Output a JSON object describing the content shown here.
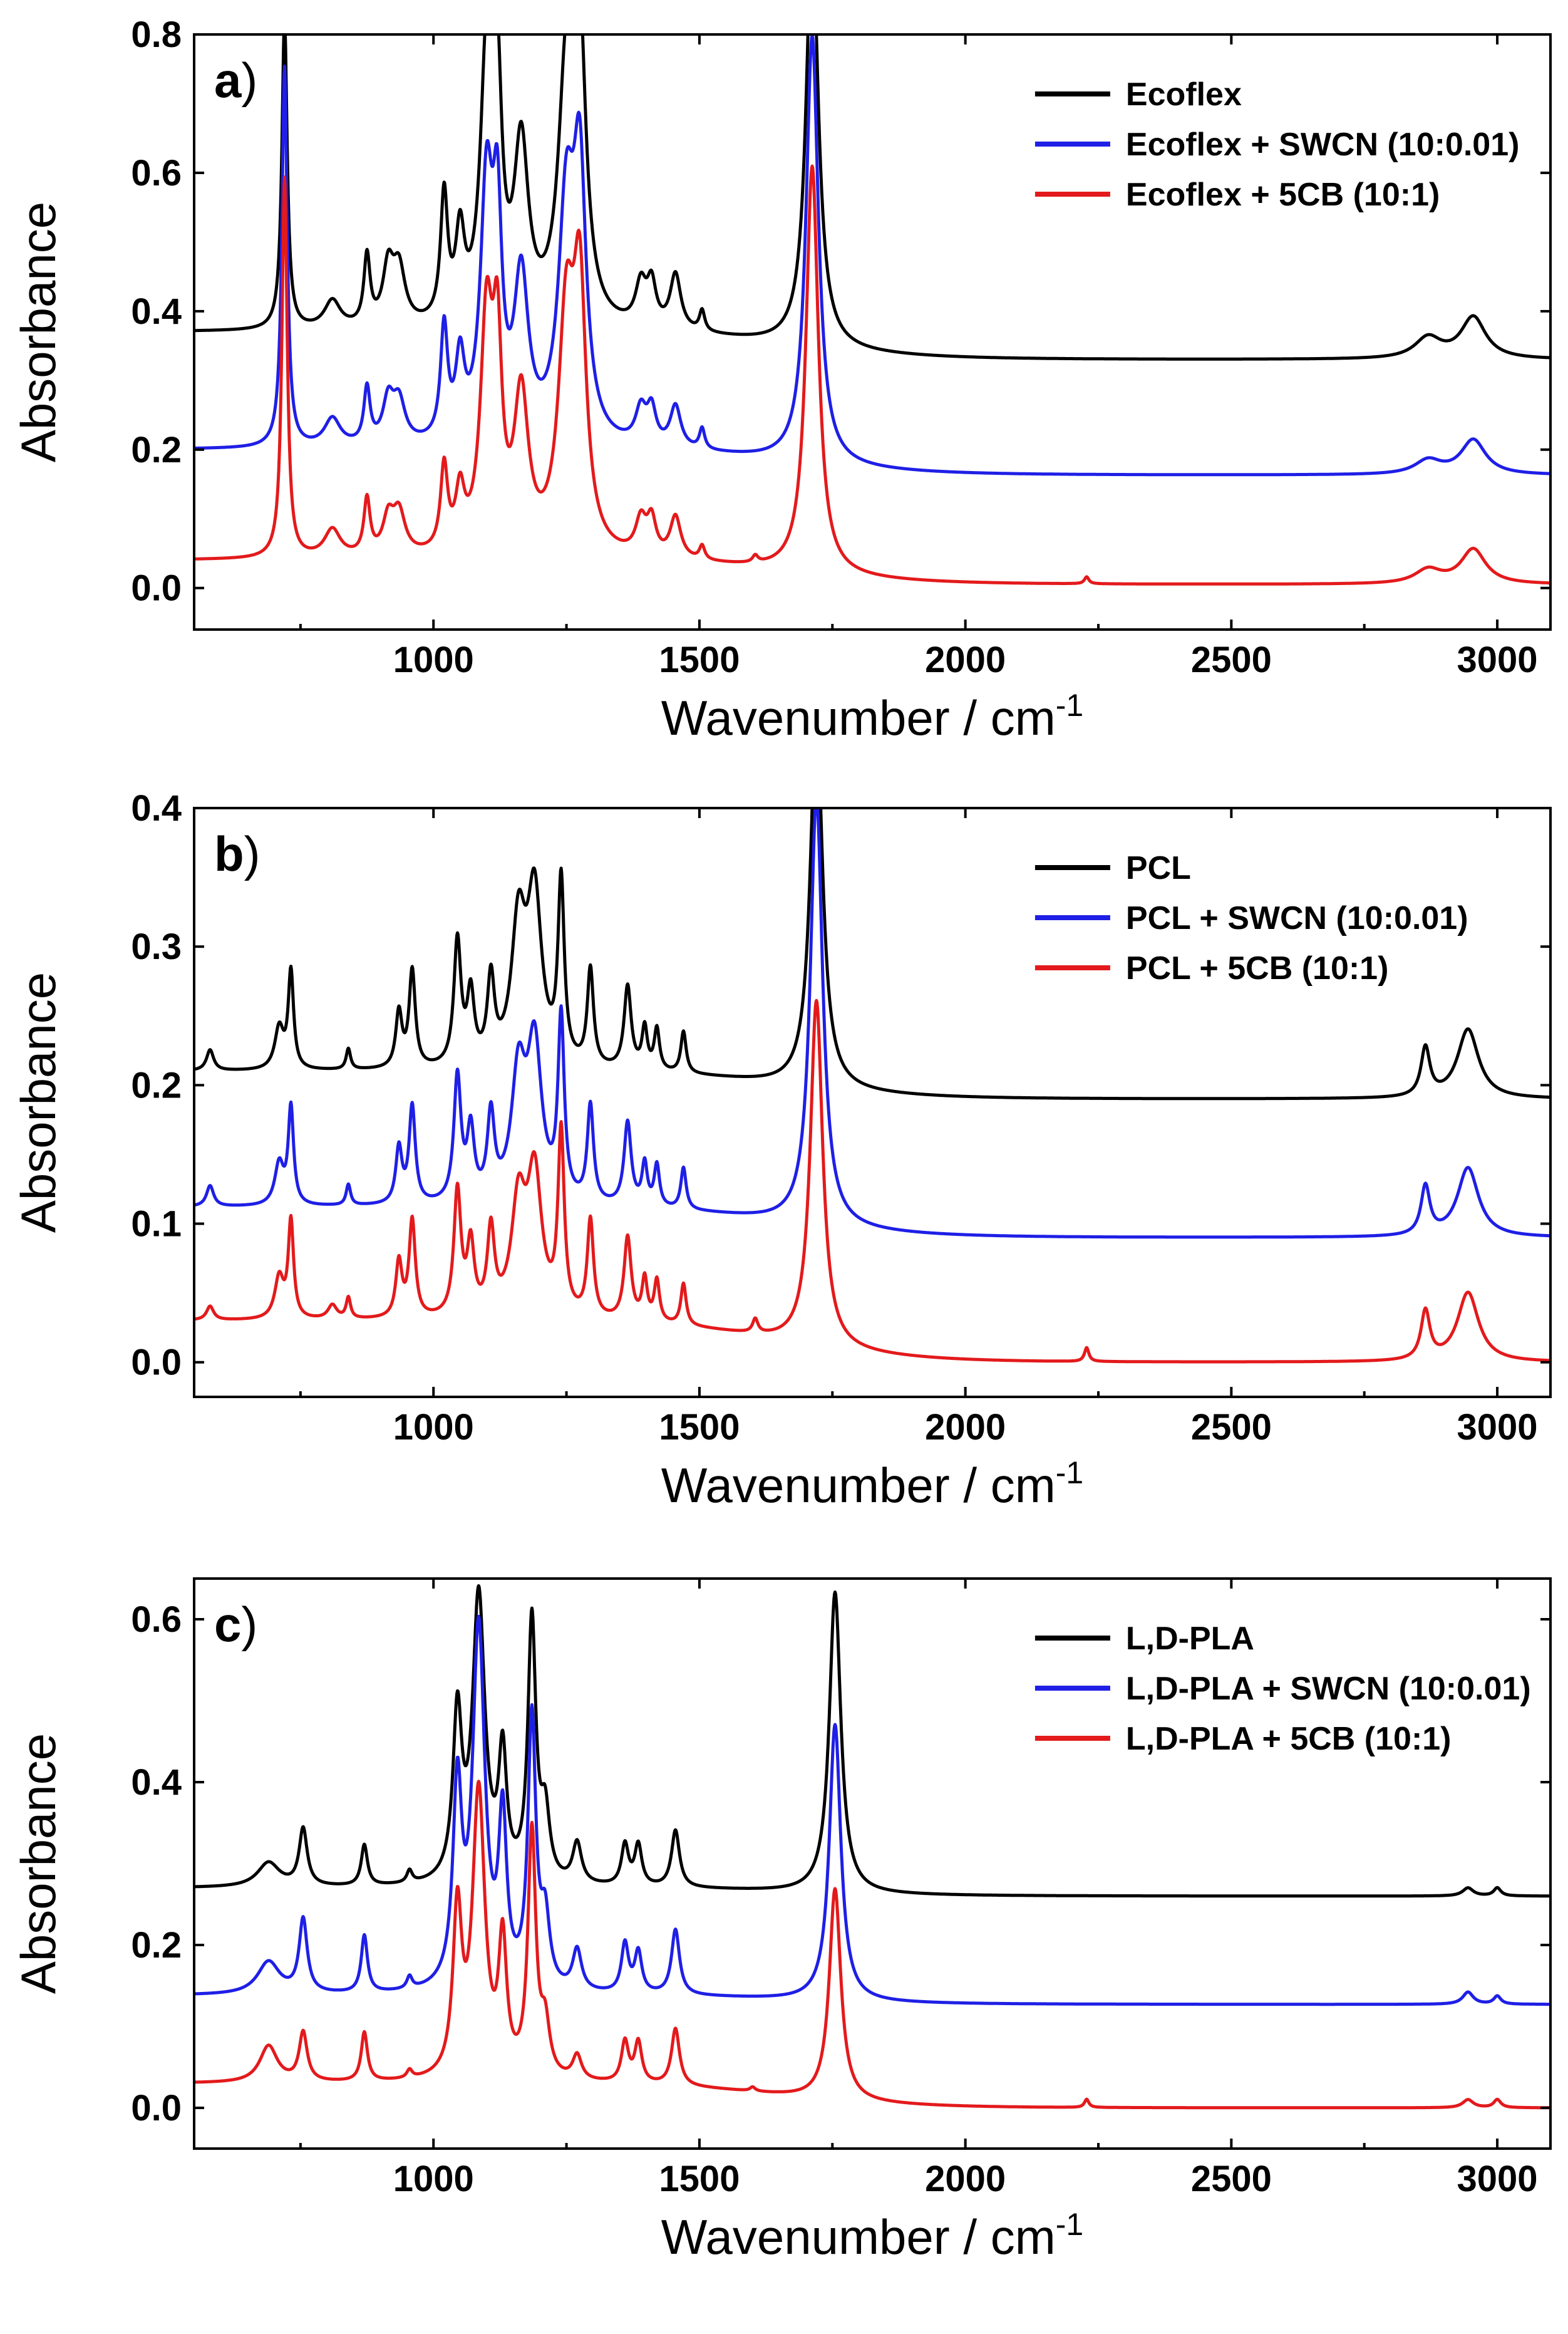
{
  "colors": {
    "black": "#000000",
    "blue": "#1f1fe6",
    "red": "#e31a1c"
  },
  "chart_data": [
    {
      "type": "line",
      "panel_label": "a",
      "xlabel": "Wavenumber / cm",
      "xlabel_sup": "-1",
      "ylabel": "Absorbance",
      "xlim": [
        550,
        3100
      ],
      "ylim": [
        -0.06,
        0.8
      ],
      "xticks": [
        1000,
        1500,
        2000,
        2500,
        3000
      ],
      "xtick_labels": [
        "1000",
        "1500",
        "2000",
        "2500",
        "3000"
      ],
      "yticks": [
        0.0,
        0.2,
        0.4,
        0.6,
        0.8
      ],
      "ytick_labels": [
        "0.0",
        "0.2",
        "0.4",
        "0.6",
        "0.8"
      ],
      "legend_position": "top-right",
      "series": [
        {
          "name": "Ecoflex",
          "color": "black",
          "baseline": 0.37,
          "high_baseline": 0.33,
          "peaks": [
            [
              720,
              0.45,
              6
            ],
            [
              810,
              0.04,
              18
            ],
            [
              875,
              0.1,
              7
            ],
            [
              915,
              0.08,
              12
            ],
            [
              935,
              0.08,
              14
            ],
            [
              1020,
              0.18,
              8
            ],
            [
              1050,
              0.12,
              10
            ],
            [
              1100,
              0.38,
              14
            ],
            [
              1120,
              0.3,
              10
            ],
            [
              1165,
              0.25,
              16
            ],
            [
              1250,
              0.35,
              18
            ],
            [
              1275,
              0.38,
              14
            ],
            [
              1390,
              0.06,
              12
            ],
            [
              1410,
              0.06,
              10
            ],
            [
              1455,
              0.08,
              12
            ],
            [
              1505,
              0.03,
              6
            ],
            [
              1712,
              0.6,
              14
            ],
            [
              2870,
              0.03,
              30
            ],
            [
              2955,
              0.06,
              28
            ]
          ]
        },
        {
          "name": "Ecoflex + SWCN (10:0.01)",
          "color": "blue",
          "baseline": 0.2,
          "high_baseline": 0.163,
          "peaks": [
            [
              720,
              0.55,
              6
            ],
            [
              810,
              0.04,
              18
            ],
            [
              875,
              0.08,
              7
            ],
            [
              915,
              0.06,
              12
            ],
            [
              935,
              0.06,
              14
            ],
            [
              1020,
              0.16,
              8
            ],
            [
              1050,
              0.11,
              10
            ],
            [
              1100,
              0.36,
              14
            ],
            [
              1120,
              0.28,
              10
            ],
            [
              1165,
              0.23,
              16
            ],
            [
              1250,
              0.33,
              18
            ],
            [
              1275,
              0.36,
              14
            ],
            [
              1390,
              0.05,
              12
            ],
            [
              1410,
              0.05,
              10
            ],
            [
              1455,
              0.06,
              12
            ],
            [
              1505,
              0.03,
              6
            ],
            [
              1712,
              0.62,
              14
            ],
            [
              2870,
              0.02,
              30
            ],
            [
              2955,
              0.05,
              28
            ]
          ]
        },
        {
          "name": "Ecoflex + 5CB (10:1)",
          "color": "red",
          "baseline": 0.04,
          "high_baseline": 0.005,
          "peaks": [
            [
              720,
              0.55,
              6
            ],
            [
              810,
              0.04,
              18
            ],
            [
              875,
              0.08,
              7
            ],
            [
              915,
              0.05,
              12
            ],
            [
              935,
              0.06,
              14
            ],
            [
              1020,
              0.12,
              8
            ],
            [
              1050,
              0.08,
              10
            ],
            [
              1100,
              0.33,
              14
            ],
            [
              1120,
              0.26,
              10
            ],
            [
              1165,
              0.22,
              16
            ],
            [
              1250,
              0.33,
              18
            ],
            [
              1275,
              0.35,
              14
            ],
            [
              1390,
              0.05,
              12
            ],
            [
              1410,
              0.05,
              10
            ],
            [
              1455,
              0.06,
              12
            ],
            [
              1505,
              0.02,
              6
            ],
            [
              1605,
              0.01,
              6
            ],
            [
              1712,
              0.59,
              14
            ],
            [
              2228,
              0.01,
              5
            ],
            [
              2870,
              0.02,
              30
            ],
            [
              2955,
              0.05,
              28
            ]
          ]
        }
      ]
    },
    {
      "type": "line",
      "panel_label": "b",
      "xlabel": "Wavenumber / cm",
      "xlabel_sup": "-1",
      "ylabel": "Absorbance",
      "xlim": [
        550,
        3100
      ],
      "ylim": [
        -0.025,
        0.4
      ],
      "xticks": [
        1000,
        1500,
        2000,
        2500,
        3000
      ],
      "xtick_labels": [
        "1000",
        "1500",
        "2000",
        "2500",
        "3000"
      ],
      "yticks": [
        0.0,
        0.1,
        0.2,
        0.3,
        0.4
      ],
      "ytick_labels": [
        "0.0",
        "0.1",
        "0.2",
        "0.3",
        "0.4"
      ],
      "legend_position": "top-right",
      "series": [
        {
          "name": "PCL",
          "color": "black",
          "baseline": 0.21,
          "high_baseline": 0.19,
          "peaks": [
            [
              580,
              0.015,
              8
            ],
            [
              710,
              0.03,
              10
            ],
            [
              732,
              0.07,
              6
            ],
            [
              840,
              0.015,
              5
            ],
            [
              935,
              0.04,
              7
            ],
            [
              960,
              0.07,
              7
            ],
            [
              1045,
              0.09,
              8
            ],
            [
              1070,
              0.05,
              8
            ],
            [
              1108,
              0.06,
              8
            ],
            [
              1160,
              0.1,
              16
            ],
            [
              1190,
              0.12,
              16
            ],
            [
              1240,
              0.13,
              7
            ],
            [
              1295,
              0.07,
              7
            ],
            [
              1365,
              0.06,
              8
            ],
            [
              1397,
              0.03,
              6
            ],
            [
              1420,
              0.03,
              6
            ],
            [
              1470,
              0.03,
              6
            ],
            [
              1720,
              0.27,
              14
            ],
            [
              2865,
              0.035,
              10
            ],
            [
              2945,
              0.05,
              24
            ]
          ]
        },
        {
          "name": "PCL + SWCN (10:0.01)",
          "color": "blue",
          "baseline": 0.112,
          "high_baseline": 0.09,
          "peaks": [
            [
              580,
              0.015,
              8
            ],
            [
              710,
              0.03,
              10
            ],
            [
              732,
              0.07,
              6
            ],
            [
              840,
              0.015,
              5
            ],
            [
              935,
              0.04,
              7
            ],
            [
              960,
              0.07,
              7
            ],
            [
              1045,
              0.09,
              8
            ],
            [
              1070,
              0.05,
              8
            ],
            [
              1108,
              0.06,
              8
            ],
            [
              1160,
              0.09,
              16
            ],
            [
              1190,
              0.11,
              16
            ],
            [
              1240,
              0.13,
              7
            ],
            [
              1295,
              0.07,
              7
            ],
            [
              1365,
              0.06,
              8
            ],
            [
              1397,
              0.03,
              6
            ],
            [
              1420,
              0.03,
              6
            ],
            [
              1470,
              0.03,
              6
            ],
            [
              1720,
              0.31,
              14
            ],
            [
              2865,
              0.035,
              10
            ],
            [
              2945,
              0.05,
              24
            ]
          ]
        },
        {
          "name": "PCL + 5CB (10:1)",
          "color": "red",
          "baseline": 0.03,
          "high_baseline": 0.0,
          "peaks": [
            [
              580,
              0.01,
              8
            ],
            [
              710,
              0.03,
              10
            ],
            [
              732,
              0.07,
              6
            ],
            [
              810,
              0.01,
              10
            ],
            [
              840,
              0.015,
              5
            ],
            [
              935,
              0.04,
              7
            ],
            [
              960,
              0.07,
              7
            ],
            [
              1045,
              0.09,
              8
            ],
            [
              1070,
              0.05,
              8
            ],
            [
              1108,
              0.06,
              8
            ],
            [
              1160,
              0.08,
              16
            ],
            [
              1190,
              0.1,
              16
            ],
            [
              1240,
              0.13,
              7
            ],
            [
              1295,
              0.07,
              7
            ],
            [
              1365,
              0.06,
              8
            ],
            [
              1397,
              0.03,
              6
            ],
            [
              1420,
              0.03,
              6
            ],
            [
              1470,
              0.03,
              6
            ],
            [
              1605,
              0.01,
              6
            ],
            [
              1720,
              0.25,
              14
            ],
            [
              2228,
              0.01,
              5
            ],
            [
              2865,
              0.035,
              10
            ],
            [
              2945,
              0.05,
              24
            ]
          ]
        }
      ]
    },
    {
      "type": "line",
      "panel_label": "c",
      "xlabel": "Wavenumber / cm",
      "xlabel_sup": "-1",
      "ylabel": "Absorbance",
      "xlim": [
        550,
        3100
      ],
      "ylim": [
        -0.05,
        0.65
      ],
      "xticks": [
        1000,
        1500,
        2000,
        2500,
        3000
      ],
      "xtick_labels": [
        "1000",
        "1500",
        "2000",
        "2500",
        "3000"
      ],
      "yticks": [
        0.0,
        0.2,
        0.4,
        0.6
      ],
      "ytick_labels": [
        "0.0",
        "0.2",
        "0.4",
        "0.6"
      ],
      "legend_position": "top-right",
      "series": [
        {
          "name": "L,D-PLA",
          "color": "black",
          "baseline": 0.27,
          "high_baseline": 0.26,
          "peaks": [
            [
              690,
              0.03,
              25
            ],
            [
              755,
              0.07,
              9
            ],
            [
              870,
              0.05,
              7
            ],
            [
              955,
              0.015,
              6
            ],
            [
              1045,
              0.2,
              10
            ],
            [
              1085,
              0.35,
              14
            ],
            [
              1130,
              0.15,
              9
            ],
            [
              1185,
              0.32,
              9
            ],
            [
              1210,
              0.08,
              10
            ],
            [
              1270,
              0.05,
              10
            ],
            [
              1360,
              0.05,
              8
            ],
            [
              1385,
              0.05,
              8
            ],
            [
              1455,
              0.07,
              9
            ],
            [
              1755,
              0.37,
              13
            ],
            [
              2945,
              0.01,
              12
            ],
            [
              3000,
              0.01,
              8
            ]
          ]
        },
        {
          "name": "L,D-PLA + SWCN (10:0.01)",
          "color": "blue",
          "baseline": 0.138,
          "high_baseline": 0.127,
          "peaks": [
            [
              690,
              0.04,
              25
            ],
            [
              755,
              0.09,
              9
            ],
            [
              870,
              0.07,
              7
            ],
            [
              955,
              0.015,
              6
            ],
            [
              1045,
              0.24,
              10
            ],
            [
              1085,
              0.44,
              14
            ],
            [
              1130,
              0.2,
              9
            ],
            [
              1185,
              0.33,
              9
            ],
            [
              1210,
              0.08,
              10
            ],
            [
              1270,
              0.05,
              10
            ],
            [
              1360,
              0.06,
              8
            ],
            [
              1385,
              0.05,
              8
            ],
            [
              1455,
              0.08,
              9
            ],
            [
              1755,
              0.34,
              13
            ],
            [
              2945,
              0.015,
              12
            ],
            [
              3000,
              0.01,
              8
            ]
          ]
        },
        {
          "name": "L,D-PLA + 5CB (10:1)",
          "color": "red",
          "baseline": 0.03,
          "high_baseline": 0.0,
          "peaks": [
            [
              690,
              0.045,
              20
            ],
            [
              755,
              0.06,
              9
            ],
            [
              870,
              0.06,
              7
            ],
            [
              955,
              0.01,
              6
            ],
            [
              1045,
              0.2,
              10
            ],
            [
              1085,
              0.35,
              14
            ],
            [
              1130,
              0.16,
              9
            ],
            [
              1185,
              0.3,
              9
            ],
            [
              1210,
              0.06,
              10
            ],
            [
              1270,
              0.03,
              10
            ],
            [
              1360,
              0.05,
              8
            ],
            [
              1385,
              0.05,
              8
            ],
            [
              1455,
              0.07,
              9
            ],
            [
              1600,
              0.005,
              6
            ],
            [
              1755,
              0.26,
              13
            ],
            [
              2228,
              0.01,
              5
            ],
            [
              2945,
              0.01,
              12
            ],
            [
              3000,
              0.01,
              8
            ]
          ]
        }
      ]
    }
  ]
}
